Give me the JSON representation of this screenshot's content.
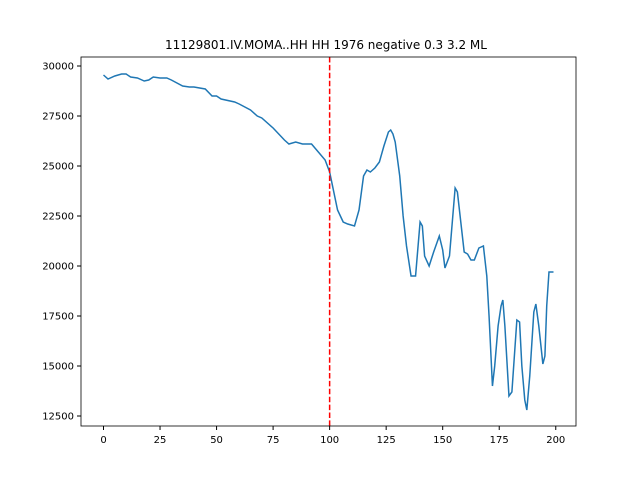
{
  "chart_data": {
    "type": "line",
    "title": "11129801.IV.MOMA..HH HH 1976 negative 0.3 3.2 ML",
    "x": [
      0,
      2,
      5,
      8,
      10,
      12,
      15,
      18,
      20,
      22,
      25,
      28,
      30,
      35,
      38,
      40,
      45,
      48,
      50,
      52,
      58,
      60,
      65,
      68,
      70,
      75,
      80,
      82,
      85,
      88,
      90,
      92,
      95,
      98,
      100,
      103.5,
      106,
      108,
      111,
      113,
      115,
      116.5,
      118,
      120,
      122,
      124,
      126,
      127,
      128,
      129,
      131,
      132.5,
      134,
      136,
      138,
      140,
      141,
      142,
      144,
      146,
      148.5,
      150,
      151,
      153,
      155.5,
      156.5,
      158,
      159.5,
      161,
      162.5,
      164,
      166,
      168,
      169.5,
      170.5,
      172,
      173,
      174.5,
      175.8,
      176.6,
      177.5,
      179.3,
      180.6,
      182.8,
      184,
      185,
      186.3,
      187.2,
      188.5,
      190.3,
      191.2,
      192.5,
      194.3,
      195.2,
      196,
      197,
      199
    ],
    "series": [
      {
        "color": "#1f77b4",
        "values": [
          29550,
          29350,
          29500,
          29600,
          29600,
          29450,
          29400,
          29250,
          29300,
          29450,
          29400,
          29400,
          29300,
          29000,
          28950,
          28950,
          28850,
          28500,
          28500,
          28350,
          28200,
          28100,
          27800,
          27500,
          27400,
          26900,
          26300,
          26100,
          26200,
          26100,
          26100,
          26100,
          25700,
          25300,
          24700,
          22800,
          22200,
          22100,
          22000,
          22800,
          24500,
          24800,
          24700,
          24900,
          25200,
          26000,
          26700,
          26800,
          26600,
          26200,
          24500,
          22500,
          21000,
          19500,
          19500,
          22200,
          22000,
          20500,
          20000,
          20700,
          21500,
          20800,
          19900,
          20500,
          23900,
          23700,
          22200,
          20700,
          20600,
          20300,
          20300,
          20900,
          21000,
          19500,
          17500,
          14000,
          15000,
          17000,
          18000,
          18300,
          17000,
          13500,
          13700,
          17300,
          17200,
          15000,
          13300,
          12800,
          14500,
          17700,
          18100,
          17000,
          15100,
          15500,
          18000,
          19700,
          19700
        ]
      }
    ],
    "xlim": [
      -9.95,
      208.95
    ],
    "ylim": [
      12000,
      30450
    ],
    "xticks": [
      0,
      25,
      50,
      75,
      100,
      125,
      150,
      175,
      200
    ],
    "yticks": [
      12500,
      15000,
      17500,
      20000,
      22500,
      25000,
      27500,
      30000
    ],
    "vlines": [
      {
        "x": 100,
        "color": "#ff0000",
        "style": "dashed"
      }
    ]
  }
}
